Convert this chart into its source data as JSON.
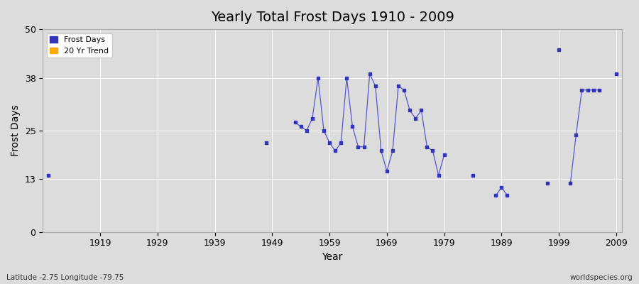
{
  "title": "Yearly Total Frost Days 1910 - 2009",
  "xlabel": "Year",
  "ylabel": "Frost Days",
  "xlim": [
    1909,
    2010
  ],
  "ylim": [
    0,
    50
  ],
  "xticks": [
    1919,
    1929,
    1939,
    1949,
    1959,
    1969,
    1979,
    1989,
    1999,
    2009
  ],
  "yticks": [
    0,
    13,
    25,
    38,
    50
  ],
  "background_color": "#dcdcdc",
  "line_color": "#5555cc",
  "marker_color": "#3333bb",
  "title_fontsize": 14,
  "subtitle": "Latitude -2.75 Longitude -79.75",
  "watermark": "worldspecies.org",
  "legend_entries": [
    "Frost Days",
    "20 Yr Trend"
  ],
  "legend_colors": [
    "#3333bb",
    "#ffaa00"
  ],
  "segments": [
    {
      "years": [
        1910
      ],
      "values": [
        14
      ]
    },
    {
      "years": [
        1948
      ],
      "values": [
        22
      ]
    },
    {
      "years": [
        1953,
        1954,
        1955,
        1956,
        1957,
        1958,
        1959,
        1960,
        1961,
        1962,
        1963,
        1964,
        1965,
        1966,
        1967,
        1968,
        1969,
        1970,
        1971,
        1972,
        1973,
        1974,
        1975,
        1976,
        1977,
        1978,
        1979
      ],
      "values": [
        27,
        26,
        25,
        28,
        38,
        25,
        22,
        20,
        22,
        38,
        26,
        21,
        21,
        39,
        36,
        20,
        15,
        20,
        36,
        35,
        30,
        28,
        30,
        21,
        20,
        14,
        19
      ]
    },
    {
      "years": [
        1984
      ],
      "values": [
        14
      ]
    },
    {
      "years": [
        1988,
        1989,
        1990
      ],
      "values": [
        9,
        11,
        9
      ]
    },
    {
      "years": [
        1997
      ],
      "values": [
        12
      ]
    },
    {
      "years": [
        1999
      ],
      "values": [
        45
      ]
    },
    {
      "years": [
        2001,
        2002,
        2003,
        2004,
        2005,
        2006
      ],
      "values": [
        12,
        24,
        35,
        35,
        35,
        35
      ]
    },
    {
      "years": [
        2009
      ],
      "values": [
        39
      ]
    }
  ]
}
